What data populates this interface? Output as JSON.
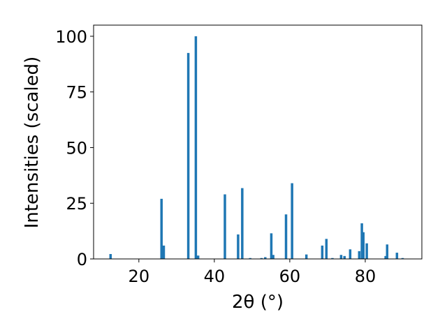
{
  "chart_data": {
    "type": "bar",
    "title": "",
    "xlabel": "2θ (°)",
    "ylabel": "Intensities (scaled)",
    "xlim": [
      8,
      95
    ],
    "ylim": [
      0,
      105
    ],
    "xticks": [
      20,
      40,
      60,
      80
    ],
    "yticks": [
      0,
      25,
      50,
      75,
      100
    ],
    "bar_color": "#1f77b4",
    "grid": false,
    "x": [
      12.5,
      26.0,
      26.6,
      33.1,
      35.1,
      35.7,
      42.8,
      46.3,
      47.4,
      49.5,
      52.5,
      53.5,
      55.1,
      55.6,
      59.0,
      60.6,
      64.4,
      68.6,
      69.7,
      71.3,
      73.6,
      74.5,
      76.0,
      78.4,
      79.1,
      79.5,
      80.4,
      85.4,
      85.8,
      88.4,
      89.9
    ],
    "values": [
      2.2,
      27.0,
      6.0,
      92.5,
      100.0,
      1.5,
      29.0,
      11.0,
      31.8,
      0.4,
      0.4,
      0.8,
      11.5,
      1.8,
      20.0,
      34.0,
      2.0,
      6.0,
      9.0,
      0.4,
      1.8,
      1.3,
      4.3,
      3.5,
      16.0,
      12.0,
      7.0,
      1.3,
      6.5,
      2.8,
      0.4
    ]
  }
}
